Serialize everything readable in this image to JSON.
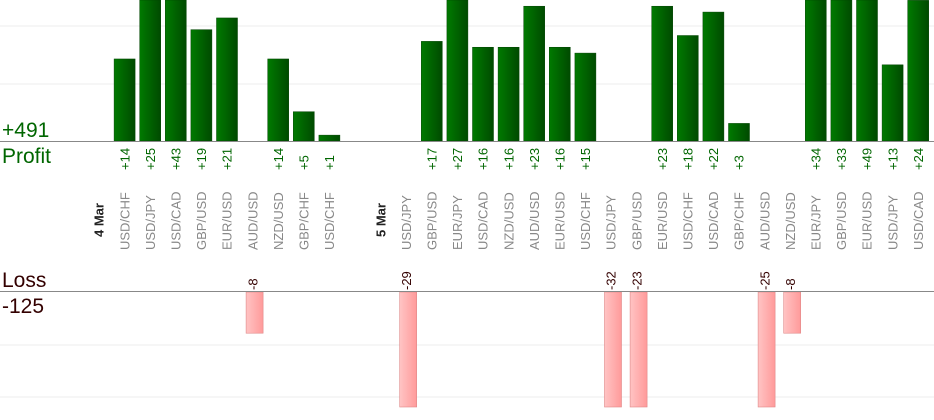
{
  "chart_data": {
    "type": "bar",
    "title": "",
    "profit": {
      "label": "Profit",
      "total": "+491",
      "color": "#006600"
    },
    "loss": {
      "label": "Loss",
      "total": "-125",
      "color": "#ffaaaa"
    },
    "grid": true,
    "groups": [
      {
        "date": "4 Mar",
        "items": [
          {
            "pair": "USD/CHF",
            "value": 14
          },
          {
            "pair": "USD/JPY",
            "value": 25
          },
          {
            "pair": "USD/CAD",
            "value": 43
          },
          {
            "pair": "GBP/USD",
            "value": 19
          },
          {
            "pair": "EUR/USD",
            "value": 21
          },
          {
            "pair": "AUD/USD",
            "value": -8
          },
          {
            "pair": "NZD/USD",
            "value": 14
          },
          {
            "pair": "GBP/CHF",
            "value": 5
          },
          {
            "pair": "USD/CHF",
            "value": 1
          }
        ]
      },
      {
        "date": "5 Mar",
        "items": [
          {
            "pair": "USD/JPY",
            "value": -29
          },
          {
            "pair": "GBP/USD",
            "value": 17
          },
          {
            "pair": "EUR/JPY",
            "value": 27
          },
          {
            "pair": "USD/CAD",
            "value": 16
          },
          {
            "pair": "NZD/USD",
            "value": 16
          },
          {
            "pair": "AUD/USD",
            "value": 23
          },
          {
            "pair": "EUR/USD",
            "value": 16
          },
          {
            "pair": "USD/CHF",
            "value": 15
          },
          {
            "pair": "USD/JPY",
            "value": -32
          },
          {
            "pair": "GBP/USD",
            "value": -23
          },
          {
            "pair": "EUR/USD",
            "value": 23
          },
          {
            "pair": "USD/CHF",
            "value": 18
          },
          {
            "pair": "USD/CAD",
            "value": 22
          },
          {
            "pair": "GBP/CHF",
            "value": 3
          },
          {
            "pair": "AUD/USD",
            "value": -25
          },
          {
            "pair": "NZD/USD",
            "value": -8
          },
          {
            "pair": "EUR/JPY",
            "value": 34
          },
          {
            "pair": "GBP/USD",
            "value": 33
          },
          {
            "pair": "EUR/USD",
            "value": 49
          },
          {
            "pair": "USD/JPY",
            "value": 13
          },
          {
            "pair": "USD/CAD",
            "value": 24
          }
        ]
      }
    ]
  }
}
